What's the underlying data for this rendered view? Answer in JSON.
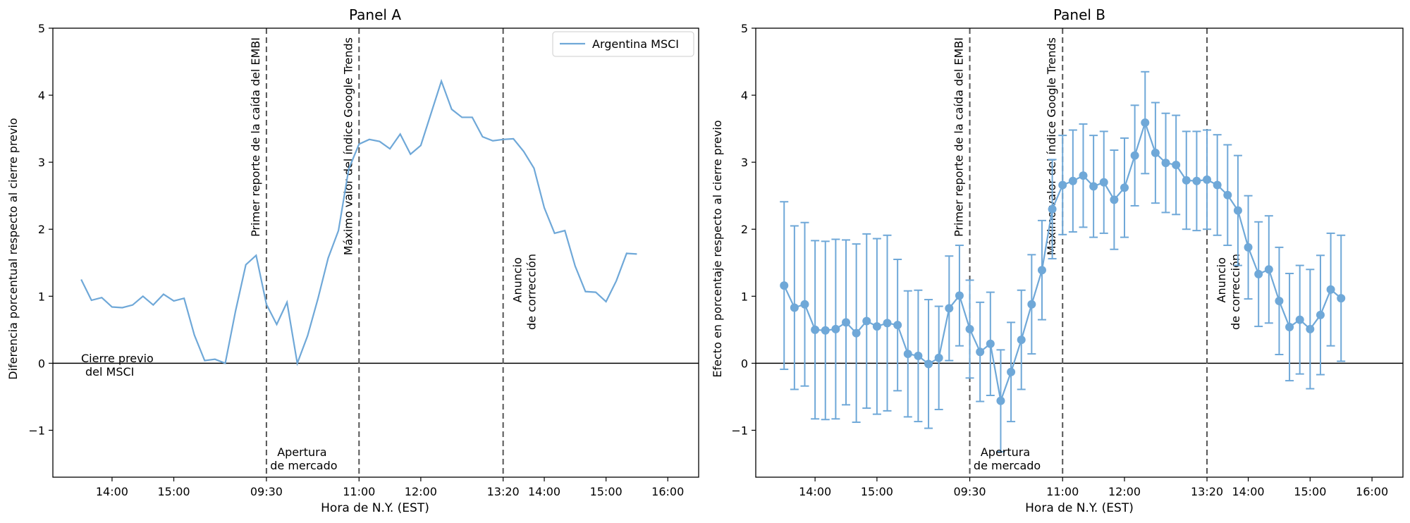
{
  "chart_data": [
    {
      "type": "line",
      "title": "Panel A",
      "xlabel": "Hora de N.Y. (EST)",
      "ylabel": "Diferencia porcentual respecto al cierre previo",
      "ylim": [
        -1.7,
        5
      ],
      "yticks": [
        -1,
        0,
        1,
        2,
        3,
        4,
        5
      ],
      "ytick_labels": [
        "−1",
        "0",
        "1",
        "2",
        "3",
        "4",
        "5"
      ],
      "xticks": [
        {
          "label": "14:00",
          "x": 3
        },
        {
          "label": "15:00",
          "x": 9
        },
        {
          "label": "09:30",
          "x": 18
        },
        {
          "label": "11:00",
          "x": 27
        },
        {
          "label": "12:00",
          "x": 33
        },
        {
          "label": "13:20",
          "x": 41
        },
        {
          "label": "14:00",
          "x": 45
        },
        {
          "label": "15:00",
          "x": 51
        },
        {
          "label": "16:00",
          "x": 57
        }
      ],
      "xlim": [
        -2.75,
        60
      ],
      "series": [
        {
          "name": "Argentina MSCI",
          "color": "#6fa8d8",
          "x": [
            0,
            1,
            2,
            3,
            4,
            5,
            6,
            7,
            8,
            9,
            10,
            11,
            12,
            13,
            14,
            15,
            16,
            17,
            18,
            19,
            20,
            21,
            22,
            23,
            24,
            25,
            26,
            27,
            28,
            29,
            30,
            31,
            32,
            33,
            34,
            35,
            36,
            37,
            38,
            39,
            40,
            41,
            42,
            43,
            44,
            45,
            46,
            47,
            48,
            49,
            50,
            51,
            52,
            53,
            54,
            55,
            56,
            57
          ],
          "y": [
            1.25,
            0.94,
            0.98,
            0.84,
            0.83,
            0.87,
            1.0,
            0.87,
            1.03,
            0.93,
            0.97,
            0.42,
            0.04,
            0.06,
            0.0,
            0.78,
            1.47,
            1.61,
            0.88,
            0.58,
            0.91,
            0.0,
            0.41,
            0.96,
            1.57,
            1.98,
            2.9,
            3.27,
            3.34,
            3.31,
            3.2,
            3.42,
            3.12,
            3.25,
            3.73,
            4.21,
            3.79,
            3.67,
            3.67,
            3.38,
            3.32,
            3.34,
            3.35,
            3.16,
            2.91,
            2.32,
            1.94,
            1.98,
            1.45,
            1.07,
            1.06,
            0.92,
            1.23,
            1.64,
            1.63,
            null,
            null,
            null
          ]
        }
      ],
      "reference_lines": [
        {
          "x": 18,
          "label": "Primer reporte de la caída del EMBI"
        },
        {
          "x": 27,
          "label": "Máximo valor del índice Google Trends"
        },
        {
          "x": 41,
          "label_lines": [
            "Anuncio",
            "de corrección"
          ]
        }
      ],
      "annotations": [
        {
          "lines": [
            "Cierre previo",
            "del MSCI"
          ]
        },
        {
          "lines": [
            "Apertura",
            "de mercado"
          ]
        }
      ],
      "legend": "top-right",
      "grid": false
    },
    {
      "type": "line",
      "title": "Panel B",
      "xlabel": "Hora de N.Y. (EST)",
      "ylabel": "Efecto en porcentaje respecto al cierre previo",
      "ylim": [
        -1.7,
        5
      ],
      "yticks": [
        -1,
        0,
        1,
        2,
        3,
        4,
        5
      ],
      "ytick_labels": [
        "−1",
        "0",
        "1",
        "2",
        "3",
        "4",
        "5"
      ],
      "xticks": [
        {
          "label": "14:00",
          "x": 3
        },
        {
          "label": "15:00",
          "x": 9
        },
        {
          "label": "09:30",
          "x": 18
        },
        {
          "label": "11:00",
          "x": 27
        },
        {
          "label": "12:00",
          "x": 33
        },
        {
          "label": "13:20",
          "x": 41
        },
        {
          "label": "14:00",
          "x": 45
        },
        {
          "label": "15:00",
          "x": 51
        },
        {
          "label": "16:00",
          "x": 57
        }
      ],
      "xlim": [
        -2.75,
        60
      ],
      "series": [
        {
          "color": "#6fa8d8",
          "x": [
            0,
            1,
            2,
            3,
            4,
            5,
            6,
            7,
            8,
            9,
            10,
            11,
            12,
            13,
            14,
            15,
            16,
            17,
            18,
            19,
            20,
            21,
            22,
            23,
            24,
            25,
            26,
            27,
            28,
            29,
            30,
            31,
            32,
            33,
            34,
            35,
            36,
            37,
            38,
            39,
            40,
            41,
            42,
            43,
            44,
            45,
            46,
            47,
            48,
            49,
            50,
            51,
            52,
            53,
            54
          ],
          "y": [
            1.16,
            0.83,
            0.88,
            0.5,
            0.49,
            0.51,
            0.61,
            0.45,
            0.63,
            0.55,
            0.6,
            0.57,
            0.14,
            0.11,
            -0.01,
            0.08,
            0.82,
            1.01,
            0.51,
            0.17,
            0.29,
            -0.56,
            -0.13,
            0.35,
            0.88,
            1.39,
            2.3,
            2.66,
            2.72,
            2.8,
            2.64,
            2.7,
            2.44,
            2.62,
            3.1,
            3.59,
            3.14,
            2.99,
            2.96,
            2.73,
            2.72,
            2.74,
            2.66,
            2.51,
            2.28,
            1.73,
            1.33,
            1.4,
            0.93,
            0.54,
            0.65,
            0.51,
            0.72,
            1.1,
            0.97
          ],
          "err": [
            1.25,
            1.22,
            1.22,
            1.33,
            1.33,
            1.34,
            1.23,
            1.33,
            1.3,
            1.31,
            1.31,
            0.98,
            0.94,
            0.98,
            0.96,
            0.77,
            0.78,
            0.75,
            0.73,
            0.74,
            0.77,
            0.76,
            0.74,
            0.74,
            0.74,
            0.74,
            0.74,
            0.74,
            0.76,
            0.77,
            0.76,
            0.76,
            0.74,
            0.74,
            0.75,
            0.76,
            0.75,
            0.74,
            0.74,
            0.73,
            0.74,
            0.74,
            0.75,
            0.75,
            0.82,
            0.77,
            0.78,
            0.8,
            0.8,
            0.8,
            0.81,
            0.89,
            0.89,
            0.84,
            0.94
          ]
        }
      ],
      "reference_lines": [
        {
          "x": 18,
          "label": "Primer reporte de la caída del EMBI"
        },
        {
          "x": 27,
          "label": "Máximo valor del índice Google Trends"
        },
        {
          "x": 41,
          "label_lines": [
            "Anuncio",
            "de corrección"
          ]
        }
      ],
      "annotations": [
        {
          "lines": [
            "Apertura",
            "de mercado"
          ]
        }
      ],
      "grid": false
    }
  ]
}
